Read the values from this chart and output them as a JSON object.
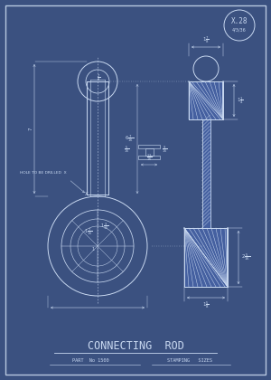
{
  "bg_color": "#3b5180",
  "border_color": "#b8c8e0",
  "line_color": "#c8d8f0",
  "title": "CONNECTING  ROD",
  "subtitle_left": "PART  No 1500",
  "subtitle_right": "STAMPING   SIZES",
  "part_label": "X.28",
  "part_date": "4/3/36",
  "note_text": "HOLE TO BE DRILLED  X",
  "fig_width": 3.0,
  "fig_height": 4.2,
  "dpi": 100
}
